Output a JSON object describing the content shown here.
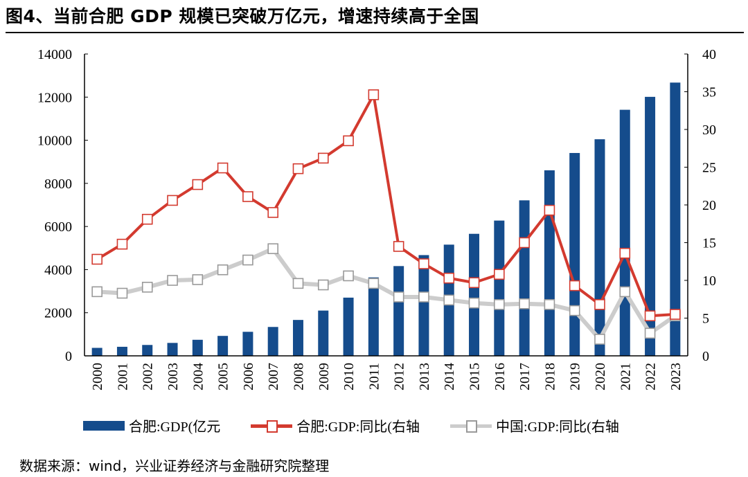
{
  "title": "图4、当前合肥 GDP 规模已突破万亿元，增速持续高于全国",
  "source": "数据来源：wind，兴业证券经济与金融研究院整理",
  "colors": {
    "bar": "#154c8c",
    "hefei_line": "#d33a2f",
    "china_line": "#cccccc",
    "china_marker_border": "#999999"
  },
  "chart_data": {
    "type": "bar+line",
    "categories": [
      "2000",
      "2001",
      "2002",
      "2003",
      "2004",
      "2005",
      "2006",
      "2007",
      "2008",
      "2009",
      "2010",
      "2011",
      "2012",
      "2013",
      "2014",
      "2015",
      "2016",
      "2017",
      "2018",
      "2019",
      "2020",
      "2021",
      "2022",
      "2023"
    ],
    "left_axis": {
      "ylim": [
        0,
        14000
      ],
      "ticks": [
        "0",
        "2000",
        "4000",
        "6000",
        "8000",
        "10000",
        "12000",
        "14000"
      ]
    },
    "right_axis": {
      "ylim": [
        0,
        40
      ],
      "ticks": [
        "0",
        "5",
        "10",
        "15",
        "20",
        "25",
        "30",
        "35",
        "40"
      ]
    },
    "grid": false,
    "legend_position": "bottom",
    "series": [
      {
        "name": "合肥:GDP(亿元",
        "type": "bar",
        "axis": "left",
        "values": [
          370,
          420,
          505,
          600,
          745,
          925,
          1115,
          1340,
          1665,
          2100,
          2700,
          3640,
          4164,
          4673,
          5158,
          5660,
          6274,
          7213,
          8605,
          9409,
          10046,
          11413,
          12013,
          12674
        ]
      },
      {
        "name": "合肥:GDP:同比(右轴",
        "type": "line",
        "axis": "right",
        "values": [
          12.8,
          14.8,
          18.1,
          20.6,
          22.7,
          24.9,
          21.1,
          19.0,
          24.8,
          26.2,
          28.5,
          34.6,
          14.5,
          12.2,
          10.3,
          9.7,
          10.8,
          15.0,
          19.3,
          9.3,
          6.8,
          13.6,
          5.3,
          5.5
        ]
      },
      {
        "name": "中国:GDP:同比(右轴",
        "type": "line",
        "axis": "right",
        "values": [
          8.5,
          8.3,
          9.1,
          10.0,
          10.1,
          11.4,
          12.7,
          14.2,
          9.6,
          9.4,
          10.6,
          9.6,
          7.8,
          7.8,
          7.4,
          7.0,
          6.8,
          6.9,
          6.8,
          6.0,
          2.2,
          8.5,
          3.0,
          5.3
        ]
      }
    ]
  }
}
